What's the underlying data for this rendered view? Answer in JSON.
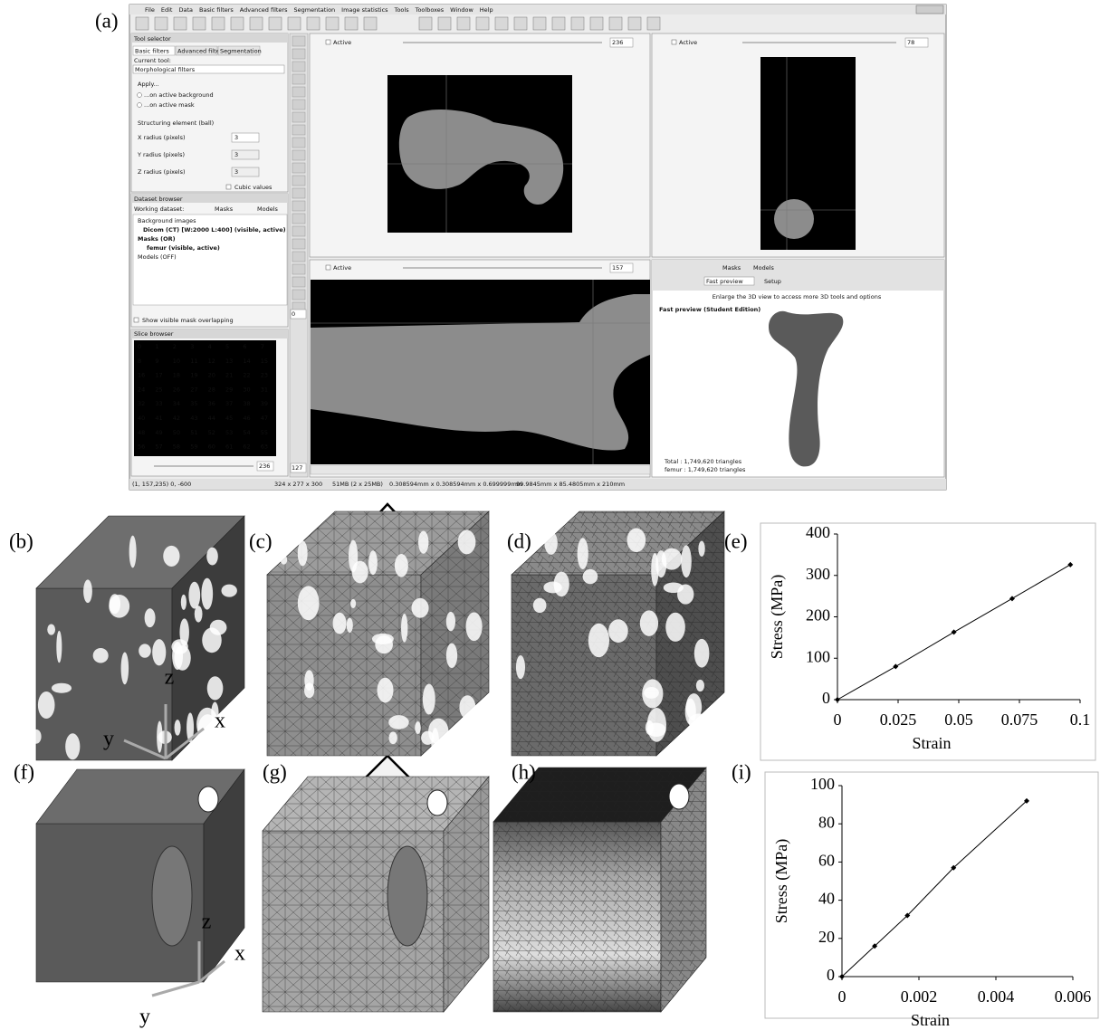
{
  "panel_labels": [
    "(a)",
    "(b)",
    "(c)",
    "(d)",
    "(f)",
    "(g)",
    "(h)"
  ],
  "axis_labels": {
    "b": [
      "z",
      "x",
      "y"
    ],
    "f": [
      "z",
      "x",
      "y"
    ]
  },
  "screenshot": {
    "menu": [
      "File",
      "Edit",
      "Data",
      "Basic filters",
      "Advanced filters",
      "Segmentation",
      "Image statistics",
      "Tools",
      "Toolboxes",
      "Window",
      "Help"
    ],
    "tool_selector": {
      "title": "Tool selector",
      "tabs": [
        "Basic filters",
        "Advanced filters",
        "Segmentation"
      ],
      "current_tool_label": "Current tool:",
      "current_tool": "Morphological filters",
      "apply": "Apply...",
      "apply_options": [
        "...on active background",
        "...on active mask"
      ],
      "structuring_element": "Structuring element (ball)",
      "radii": [
        {
          "label": "X radius (pixels)",
          "value": "3"
        },
        {
          "label": "Y radius (pixels)",
          "value": "3"
        },
        {
          "label": "Z radius (pixels)",
          "value": "3"
        }
      ],
      "cubic_values": "Cubic values"
    },
    "dataset_browser": {
      "title": "Dataset browser",
      "working_dataset": "Working dataset:",
      "options": [
        "Masks",
        "Models"
      ],
      "tree": [
        "Background images",
        "Dicom  (CT) [W:2000 L:400] (visible, active)",
        "Masks (OR)",
        "femur (visible, active)",
        "Models (OFF)"
      ],
      "overlap": "Show visible mask overlapping"
    },
    "slice_browser": {
      "title": "Slice browser",
      "slices": [
        "0",
        "1",
        "2",
        "3",
        "4",
        "5",
        "6",
        "7",
        "8",
        "9",
        "10",
        "11",
        "12",
        "13",
        "14",
        "15",
        "16",
        "17",
        "18",
        "19",
        "20",
        "21",
        "22",
        "23",
        "24",
        "25",
        "26",
        "27",
        "28",
        "29",
        "30",
        "31",
        "32",
        "33",
        "34",
        "35",
        "36",
        "37",
        "38",
        "39",
        "40",
        "41",
        "42",
        "43",
        "44",
        "45",
        "46",
        "47",
        "48",
        "49",
        "50",
        "51",
        "52",
        "53",
        "54",
        "55",
        "56",
        "57",
        "58",
        "59",
        "60",
        "61",
        "62",
        "63"
      ],
      "slider_value": "236"
    },
    "side_values": [
      "0",
      "127"
    ],
    "views": [
      {
        "active": "Active",
        "slice": "236"
      },
      {
        "active": "Active",
        "slice": "78"
      },
      {
        "active": "Active",
        "slice": "157"
      }
    ],
    "preview": {
      "options": [
        "Masks",
        "Models"
      ],
      "mode": "Fast preview",
      "setup": "Setup",
      "hint": "Enlarge the 3D view to access more 3D tools and options",
      "title": "Fast preview (Student Edition)",
      "stats": [
        "Total : 1,749,620 triangles",
        "femur : 1,749,620 triangles"
      ]
    },
    "status": [
      "(1, 157,235) 0, -600",
      "324 x 277 x 300",
      "51MB (2 x 25MB)",
      "0.308594mm x 0.308594mm x 0.699999mm",
      "99.9845mm x 85.4805mm x 210mm"
    ]
  },
  "chart_data": [
    {
      "type": "line",
      "label": "(e)",
      "xlabel": "Strain",
      "ylabel": "Stress (MPa)",
      "color": "#000000",
      "x": [
        0,
        0.024,
        0.048,
        0.072,
        0.096
      ],
      "values": [
        0,
        80,
        163,
        244,
        326
      ],
      "xlim": [
        0,
        0.1
      ],
      "ylim": [
        0,
        400
      ],
      "xticks": [
        0,
        0.025,
        0.05,
        0.075,
        0.1
      ],
      "yticks": [
        0,
        100,
        200,
        300,
        400
      ]
    },
    {
      "type": "line",
      "label": "(i)",
      "xlabel": "Strain",
      "ylabel": "Stress (MPa)",
      "color": "#000000",
      "x": [
        0,
        0.00085,
        0.0017,
        0.0029,
        0.0048
      ],
      "values": [
        0,
        16,
        32,
        57,
        92
      ],
      "xlim": [
        0,
        0.006
      ],
      "ylim": [
        0,
        100
      ],
      "xticks": [
        0,
        0.002,
        0.004,
        0.006
      ],
      "yticks": [
        0,
        20,
        40,
        60,
        80,
        100
      ]
    }
  ]
}
